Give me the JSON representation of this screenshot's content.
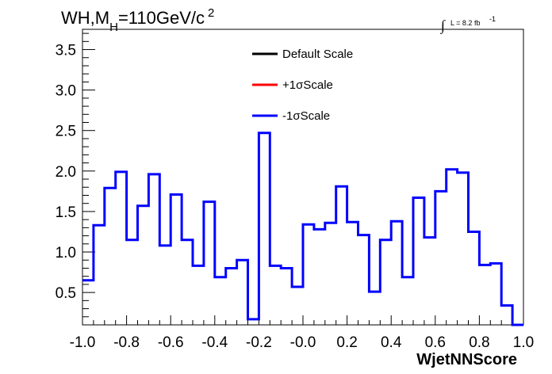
{
  "chart_data": {
    "type": "step",
    "title_main": "WH,M",
    "title_sub": "H",
    "title_rest": "=110GeV/c",
    "title_sup": "2",
    "lumi_text": "L = 8.2 fb",
    "lumi_sup": "-1",
    "xlabel": "WjetNNScore",
    "xlim": [
      -1.0,
      1.0
    ],
    "ylim": [
      0.1,
      3.75
    ],
    "x_ticks": [
      "-1.0",
      "-0.8",
      "-0.6",
      "-0.4",
      "-0.2",
      "-0.0",
      "0.2",
      "0.4",
      "0.6",
      "0.8",
      "1.0"
    ],
    "x_tick_values": [
      -1.0,
      -0.8,
      -0.6,
      -0.4,
      -0.2,
      0.0,
      0.2,
      0.4,
      0.6,
      0.8,
      1.0
    ],
    "y_ticks": [
      "0.5",
      "1.0",
      "1.5",
      "2.0",
      "2.5",
      "3.0",
      "3.5"
    ],
    "y_tick_values": [
      0.5,
      1.0,
      1.5,
      2.0,
      2.5,
      3.0,
      3.5
    ],
    "bin_edges_start": -1.0,
    "bin_width": 0.05,
    "legend": [
      {
        "name": "Default Scale",
        "color": "#000000"
      },
      {
        "name": "+1σScale",
        "color": "#ff0000"
      },
      {
        "name": "-1σScale",
        "color": "#0000ff"
      }
    ],
    "series": [
      {
        "name": "-1σScale",
        "color": "#0000ff",
        "values": [
          0.65,
          1.33,
          1.79,
          1.99,
          1.15,
          1.57,
          1.96,
          1.08,
          1.71,
          1.15,
          0.83,
          1.62,
          0.69,
          0.8,
          0.9,
          0.17,
          2.47,
          0.83,
          0.8,
          0.57,
          1.34,
          1.28,
          1.36,
          1.81,
          1.37,
          1.21,
          0.51,
          1.15,
          1.38,
          0.69,
          1.67,
          1.18,
          1.75,
          2.02,
          1.98,
          1.25,
          0.84,
          0.86,
          0.34,
          0.1
        ]
      }
    ]
  }
}
